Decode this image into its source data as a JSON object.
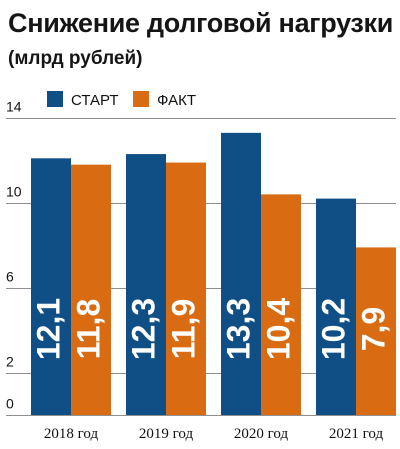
{
  "title": "Снижение долговой нагрузки",
  "subtitle": "(млрд рублей)",
  "chart_data": {
    "type": "bar",
    "categories": [
      "2018 год",
      "2019 год",
      "2020 год",
      "2021 год"
    ],
    "series": [
      {
        "name": "СТАРТ",
        "values": [
          12.1,
          12.3,
          13.3,
          10.2
        ],
        "labels": [
          "12,1",
          "12,3",
          "13,3",
          "10,2"
        ],
        "color": "#0f4f86"
      },
      {
        "name": "ФАКТ",
        "values": [
          11.8,
          11.9,
          10.4,
          7.9
        ],
        "labels": [
          "11,8",
          "11,9",
          "10,4",
          "7,9"
        ],
        "color": "#d96b12"
      }
    ],
    "title": "Снижение долговой нагрузки",
    "subtitle": "(млрд рублей)",
    "xlabel": "",
    "ylabel": "",
    "ylim": [
      0,
      14
    ],
    "yticks": [
      0,
      2,
      6,
      10,
      14
    ],
    "grid": true,
    "legend": "top-left"
  }
}
